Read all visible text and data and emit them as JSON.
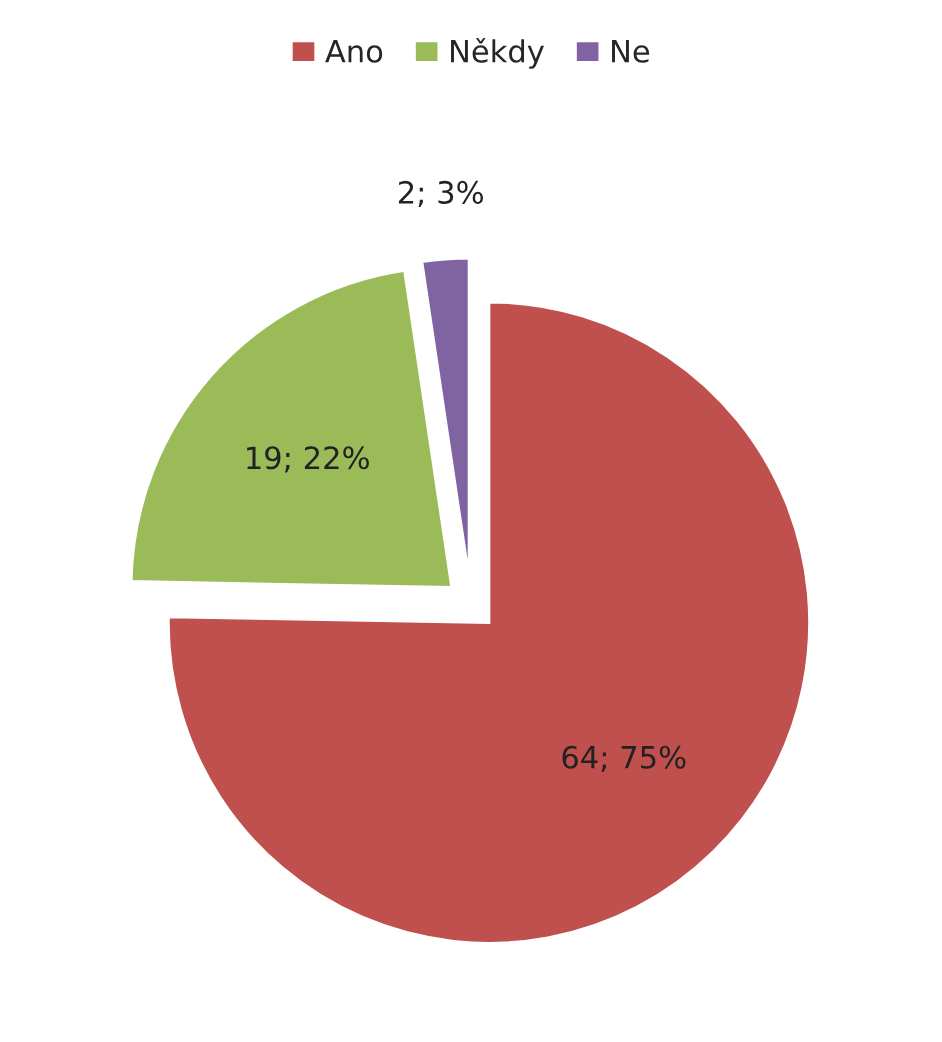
{
  "chart_data": {
    "type": "pie",
    "categories": [
      "Ano",
      "Někdy",
      "Ne"
    ],
    "values": [
      64,
      19,
      2
    ],
    "colors": [
      "#c0504d",
      "#9bbb59",
      "#8064a2"
    ],
    "value_labels": [
      "64; 75%",
      "19; 22%",
      "2; 3%"
    ],
    "legend": "top"
  }
}
